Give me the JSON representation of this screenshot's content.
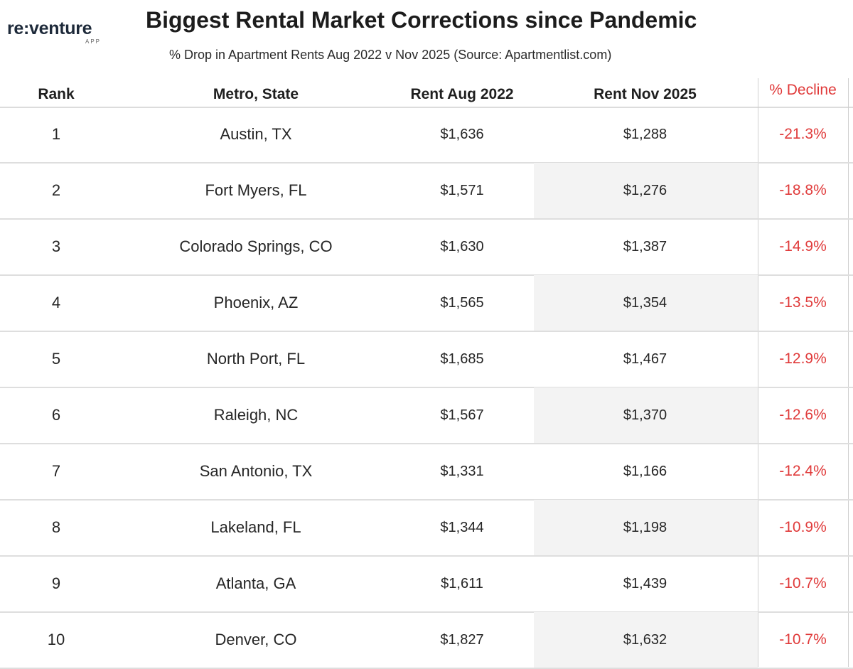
{
  "logo": {
    "text": "re:venture",
    "sub": "APP"
  },
  "chart_data": {
    "type": "table",
    "title": "Biggest Rental Market Corrections since Pandemic",
    "subtitle": "% Drop in Apartment Rents Aug 2022 v Nov 2025 (Source: Apartmentlist.com)",
    "columns": [
      "Rank",
      "Metro, State",
      "Rent Aug 2022",
      "Rent Nov 2025",
      "% Decline"
    ],
    "rows": [
      {
        "rank": "1",
        "metro": "Austin, TX",
        "rent_2022": "$1,636",
        "rent_2025": "$1,288",
        "decline": "-21.3%"
      },
      {
        "rank": "2",
        "metro": "Fort Myers, FL",
        "rent_2022": "$1,571",
        "rent_2025": "$1,276",
        "decline": "-18.8%"
      },
      {
        "rank": "3",
        "metro": "Colorado Springs, CO",
        "rent_2022": "$1,630",
        "rent_2025": "$1,387",
        "decline": "-14.9%"
      },
      {
        "rank": "4",
        "metro": "Phoenix, AZ",
        "rent_2022": "$1,565",
        "rent_2025": "$1,354",
        "decline": "-13.5%"
      },
      {
        "rank": "5",
        "metro": "North Port, FL",
        "rent_2022": "$1,685",
        "rent_2025": "$1,467",
        "decline": "-12.9%"
      },
      {
        "rank": "6",
        "metro": "Raleigh, NC",
        "rent_2022": "$1,567",
        "rent_2025": "$1,370",
        "decline": "-12.6%"
      },
      {
        "rank": "7",
        "metro": "San Antonio, TX",
        "rent_2022": "$1,331",
        "rent_2025": "$1,166",
        "decline": "-12.4%"
      },
      {
        "rank": "8",
        "metro": "Lakeland, FL",
        "rent_2022": "$1,344",
        "rent_2025": "$1,198",
        "decline": "-10.9%"
      },
      {
        "rank": "9",
        "metro": "Atlanta, GA",
        "rent_2022": "$1,611",
        "rent_2025": "$1,439",
        "decline": "-10.7%"
      },
      {
        "rank": "10",
        "metro": "Denver, CO",
        "rent_2022": "$1,827",
        "rent_2025": "$1,632",
        "decline": "-10.7%"
      }
    ],
    "colors": {
      "decline": "#e03a3a",
      "shade": "#f3f3f3"
    }
  }
}
